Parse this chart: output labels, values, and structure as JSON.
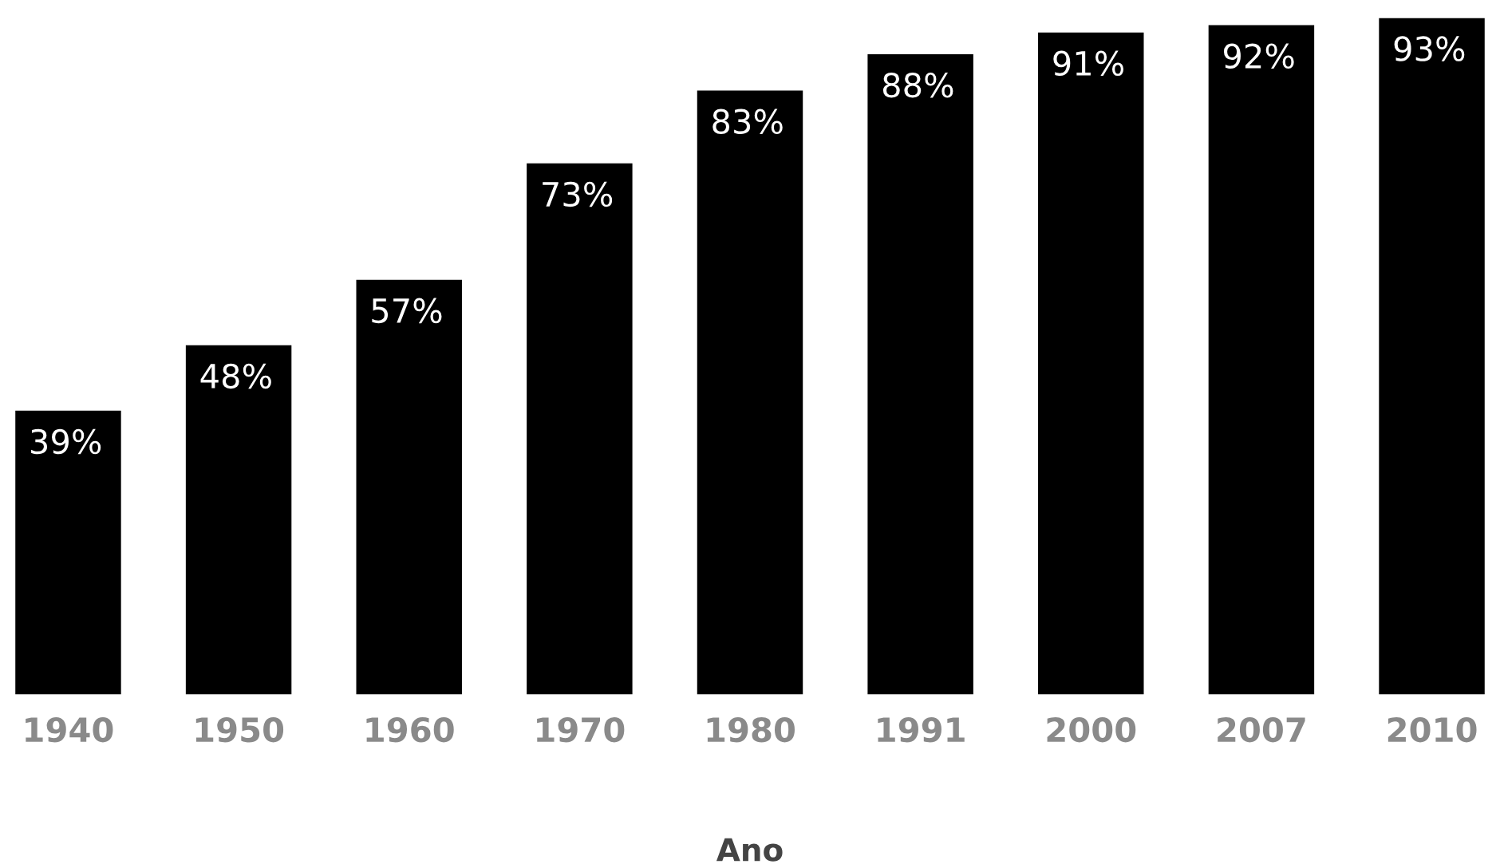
{
  "chart_data": {
    "type": "bar",
    "xlabel": "Ano",
    "categories": [
      "1940",
      "1950",
      "1960",
      "1970",
      "1980",
      "1991",
      "2000",
      "2007",
      "2010"
    ],
    "values": [
      39,
      48,
      57,
      73,
      83,
      88,
      91,
      92,
      93
    ],
    "value_labels": [
      "39%",
      "48%",
      "57%",
      "73%",
      "83%",
      "88%",
      "91%",
      "92%",
      "93%"
    ],
    "color": "#000000",
    "grid": false,
    "legend": false
  }
}
